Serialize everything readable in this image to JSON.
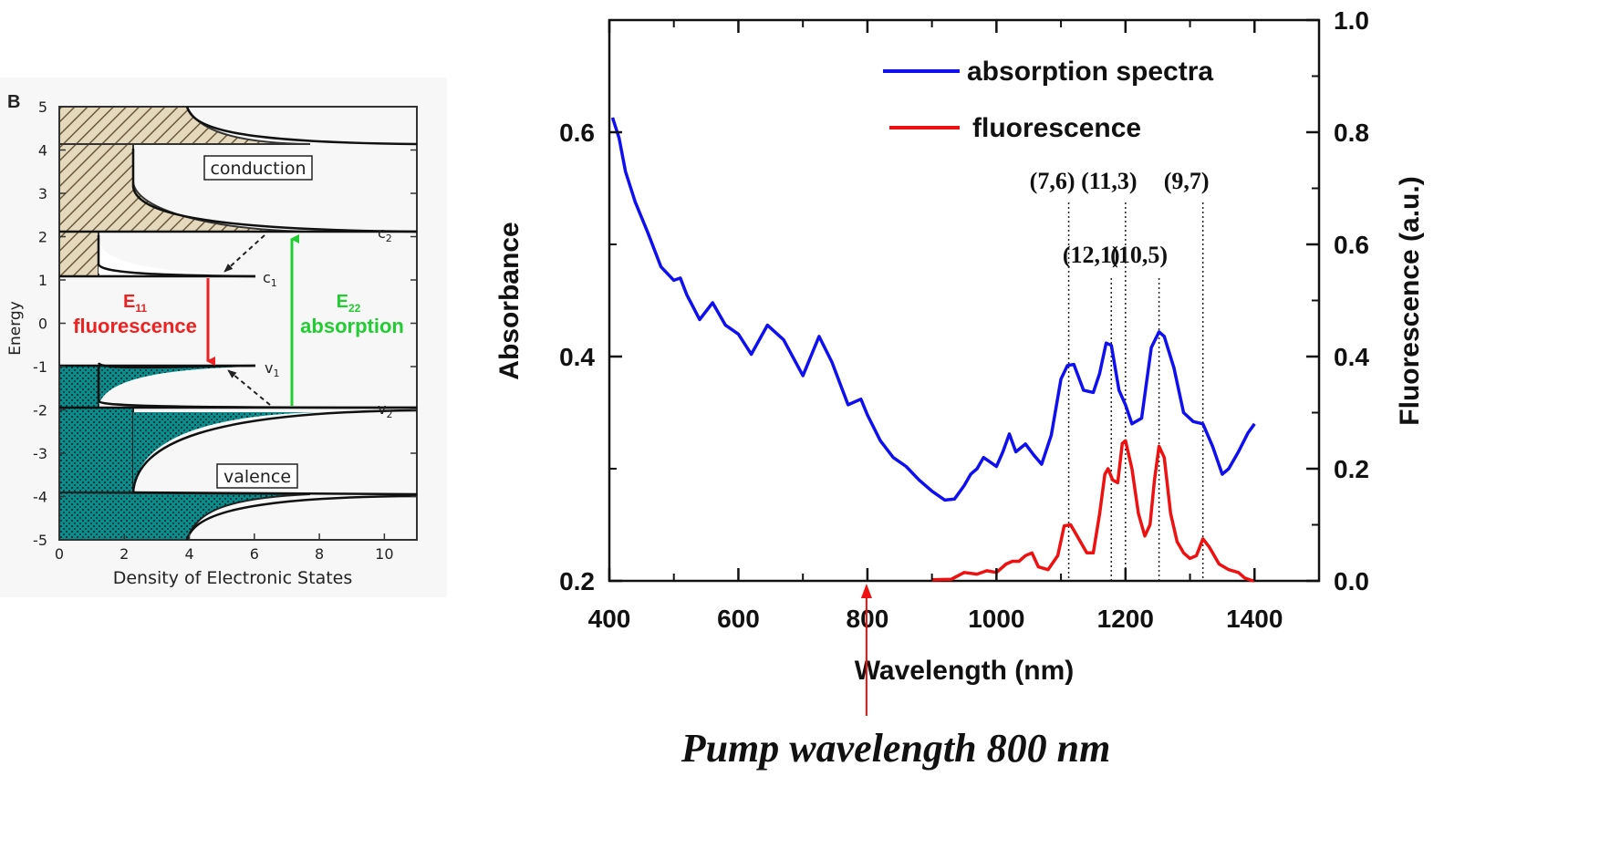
{
  "panel_b": {
    "letter": "B",
    "xlabel": "Density of Electronic States",
    "ylabel": "Energy",
    "x_ticks": [
      "0",
      "2",
      "4",
      "6",
      "8",
      "10"
    ],
    "y_ticks": [
      "5",
      "4",
      "3",
      "2",
      "1",
      "0",
      "-1",
      "-2",
      "-3",
      "-4",
      "-5"
    ],
    "band_labels": {
      "conduction": "conduction",
      "valence": "valence"
    },
    "level_labels": {
      "c2": "c",
      "c2_sub": "2",
      "c1": "c",
      "c1_sub": "1",
      "v1": "v",
      "v1_sub": "1",
      "v2": "v",
      "v2_sub": "2"
    },
    "e11": {
      "symbol": "E",
      "sub": "11",
      "text": "fluorescence",
      "color": "#ee2222"
    },
    "e22": {
      "symbol": "E",
      "sub": "22",
      "text": "absorption",
      "color": "#22cc33"
    },
    "conduction_fill": "#d8cbb0",
    "valence_fill": "#008888"
  },
  "chart_data": {
    "type": "line",
    "xlabel": "Wavelength (nm)",
    "ylabel": "Absorbance",
    "y2label": "Fluorescence (a.u.)",
    "xlim": [
      400,
      1500
    ],
    "ylim": [
      0.2,
      0.7
    ],
    "y2lim": [
      0.0,
      1.0
    ],
    "x_ticks": [
      400,
      600,
      800,
      1000,
      1200,
      1400
    ],
    "y_ticks": [
      "0.2",
      "0.4",
      "0.6"
    ],
    "y2_ticks": [
      "0.0",
      "0.2",
      "0.4",
      "0.6",
      "0.8",
      "1.0"
    ],
    "legend_position": "top-right",
    "series": [
      {
        "name": "absorption spectra",
        "axis": "left",
        "color": "#1010ee",
        "x": [
          405,
          415,
          425,
          440,
          460,
          480,
          500,
          510,
          520,
          540,
          560,
          580,
          600,
          620,
          645,
          670,
          700,
          725,
          745,
          770,
          790,
          800,
          820,
          840,
          860,
          880,
          900,
          920,
          935,
          950,
          960,
          970,
          980,
          1000,
          1010,
          1020,
          1030,
          1045,
          1058,
          1070,
          1085,
          1100,
          1110,
          1120,
          1135,
          1150,
          1160,
          1170,
          1178,
          1190,
          1200,
          1210,
          1225,
          1240,
          1252,
          1260,
          1275,
          1290,
          1305,
          1320,
          1335,
          1350,
          1360,
          1375,
          1390,
          1400
        ],
        "y": [
          0.613,
          0.595,
          0.565,
          0.538,
          0.51,
          0.48,
          0.468,
          0.47,
          0.455,
          0.433,
          0.448,
          0.428,
          0.42,
          0.402,
          0.428,
          0.415,
          0.383,
          0.418,
          0.395,
          0.357,
          0.362,
          0.348,
          0.325,
          0.31,
          0.302,
          0.29,
          0.28,
          0.272,
          0.273,
          0.285,
          0.295,
          0.3,
          0.31,
          0.302,
          0.315,
          0.331,
          0.315,
          0.322,
          0.312,
          0.304,
          0.33,
          0.38,
          0.392,
          0.393,
          0.37,
          0.368,
          0.385,
          0.412,
          0.41,
          0.37,
          0.357,
          0.34,
          0.345,
          0.408,
          0.422,
          0.418,
          0.39,
          0.35,
          0.342,
          0.34,
          0.32,
          0.295,
          0.3,
          0.315,
          0.332,
          0.34
        ]
      },
      {
        "name": "fluorescence",
        "axis": "right",
        "color": "#ee1111",
        "x": [
          900,
          930,
          950,
          970,
          985,
          1000,
          1015,
          1025,
          1035,
          1045,
          1055,
          1065,
          1080,
          1095,
          1105,
          1115,
          1125,
          1140,
          1150,
          1160,
          1168,
          1173,
          1180,
          1188,
          1195,
          1200,
          1210,
          1220,
          1230,
          1238,
          1245,
          1252,
          1260,
          1270,
          1280,
          1290,
          1300,
          1310,
          1320,
          1330,
          1345,
          1360,
          1375,
          1385,
          1395,
          1400
        ],
        "y": [
          0.002,
          0.003,
          0.015,
          0.012,
          0.018,
          0.015,
          0.03,
          0.035,
          0.035,
          0.045,
          0.05,
          0.025,
          0.02,
          0.045,
          0.098,
          0.1,
          0.08,
          0.05,
          0.05,
          0.12,
          0.19,
          0.2,
          0.18,
          0.175,
          0.245,
          0.25,
          0.2,
          0.12,
          0.08,
          0.1,
          0.18,
          0.24,
          0.22,
          0.12,
          0.07,
          0.05,
          0.04,
          0.045,
          0.075,
          0.06,
          0.03,
          0.02,
          0.015,
          0.005,
          0.001,
          0.0
        ]
      }
    ],
    "chirality_labels": [
      {
        "label": "(7,6)",
        "x": 1112,
        "row": "upper"
      },
      {
        "label": "(12,1)",
        "x": 1178,
        "row": "lower"
      },
      {
        "label": "(11,3)",
        "x": 1200,
        "row": "upper"
      },
      {
        "label": "(10,5)",
        "x": 1252,
        "row": "lower"
      },
      {
        "label": "(9,7)",
        "x": 1320,
        "row": "upper"
      }
    ],
    "pump": {
      "x": 800,
      "text": "Pump wavelength 800 nm",
      "color": "#ee1111"
    }
  }
}
